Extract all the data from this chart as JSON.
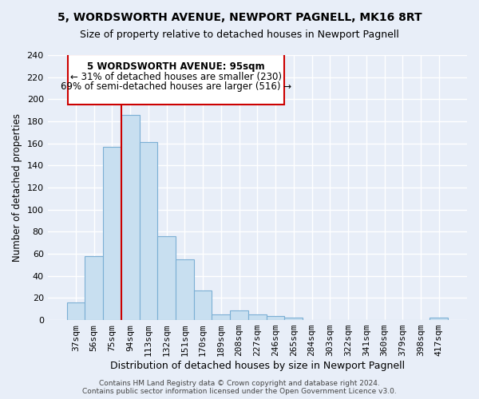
{
  "title_line1": "5, WORDSWORTH AVENUE, NEWPORT PAGNELL, MK16 8RT",
  "title_line2": "Size of property relative to detached houses in Newport Pagnell",
  "xlabel": "Distribution of detached houses by size in Newport Pagnell",
  "ylabel": "Number of detached properties",
  "bar_labels": [
    "37sqm",
    "56sqm",
    "75sqm",
    "94sqm",
    "113sqm",
    "132sqm",
    "151sqm",
    "170sqm",
    "189sqm",
    "208sqm",
    "227sqm",
    "246sqm",
    "265sqm",
    "284sqm",
    "303sqm",
    "322sqm",
    "341sqm",
    "360sqm",
    "379sqm",
    "398sqm",
    "417sqm"
  ],
  "bar_values": [
    16,
    58,
    157,
    186,
    161,
    76,
    55,
    27,
    5,
    9,
    5,
    4,
    2,
    0,
    0,
    0,
    0,
    0,
    0,
    0,
    2
  ],
  "bar_color": "#c8dff0",
  "bar_edge_color": "#7bafd4",
  "vline_bin_index": 3,
  "annotation_title": "5 WORDSWORTH AVENUE: 95sqm",
  "annotation_line1": "← 31% of detached houses are smaller (230)",
  "annotation_line2": "69% of semi-detached houses are larger (516) →",
  "annotation_box_color": "#ffffff",
  "annotation_box_edge_color": "#cc0000",
  "vline_color": "#cc0000",
  "ylim": [
    0,
    240
  ],
  "yticks": [
    0,
    20,
    40,
    60,
    80,
    100,
    120,
    140,
    160,
    180,
    200,
    220,
    240
  ],
  "footer_line1": "Contains HM Land Registry data © Crown copyright and database right 2024.",
  "footer_line2": "Contains public sector information licensed under the Open Government Licence v3.0.",
  "bg_color": "#e8eef8",
  "grid_color": "#ffffff",
  "title1_fontsize": 10,
  "title2_fontsize": 9
}
